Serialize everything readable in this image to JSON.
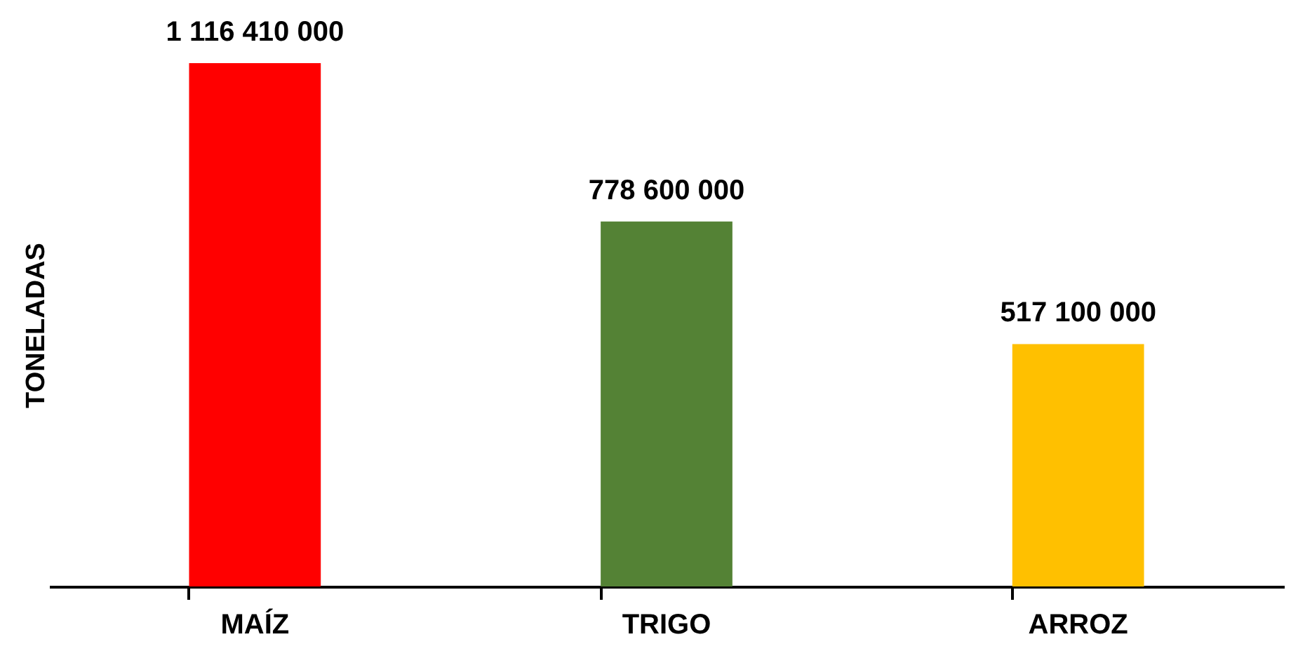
{
  "chart_data": {
    "type": "bar",
    "ylabel": "TONELADAS",
    "categories": [
      "MAÍZ",
      "TRIGO",
      "ARROZ"
    ],
    "values": [
      1116410000,
      778600000,
      517100000
    ],
    "colors": [
      "#ff0000",
      "#548235",
      "#ffc000"
    ],
    "value_labels": [
      "1 116 410 000",
      "778 600 000",
      "517 100 000"
    ],
    "grid": false,
    "legend": false
  }
}
